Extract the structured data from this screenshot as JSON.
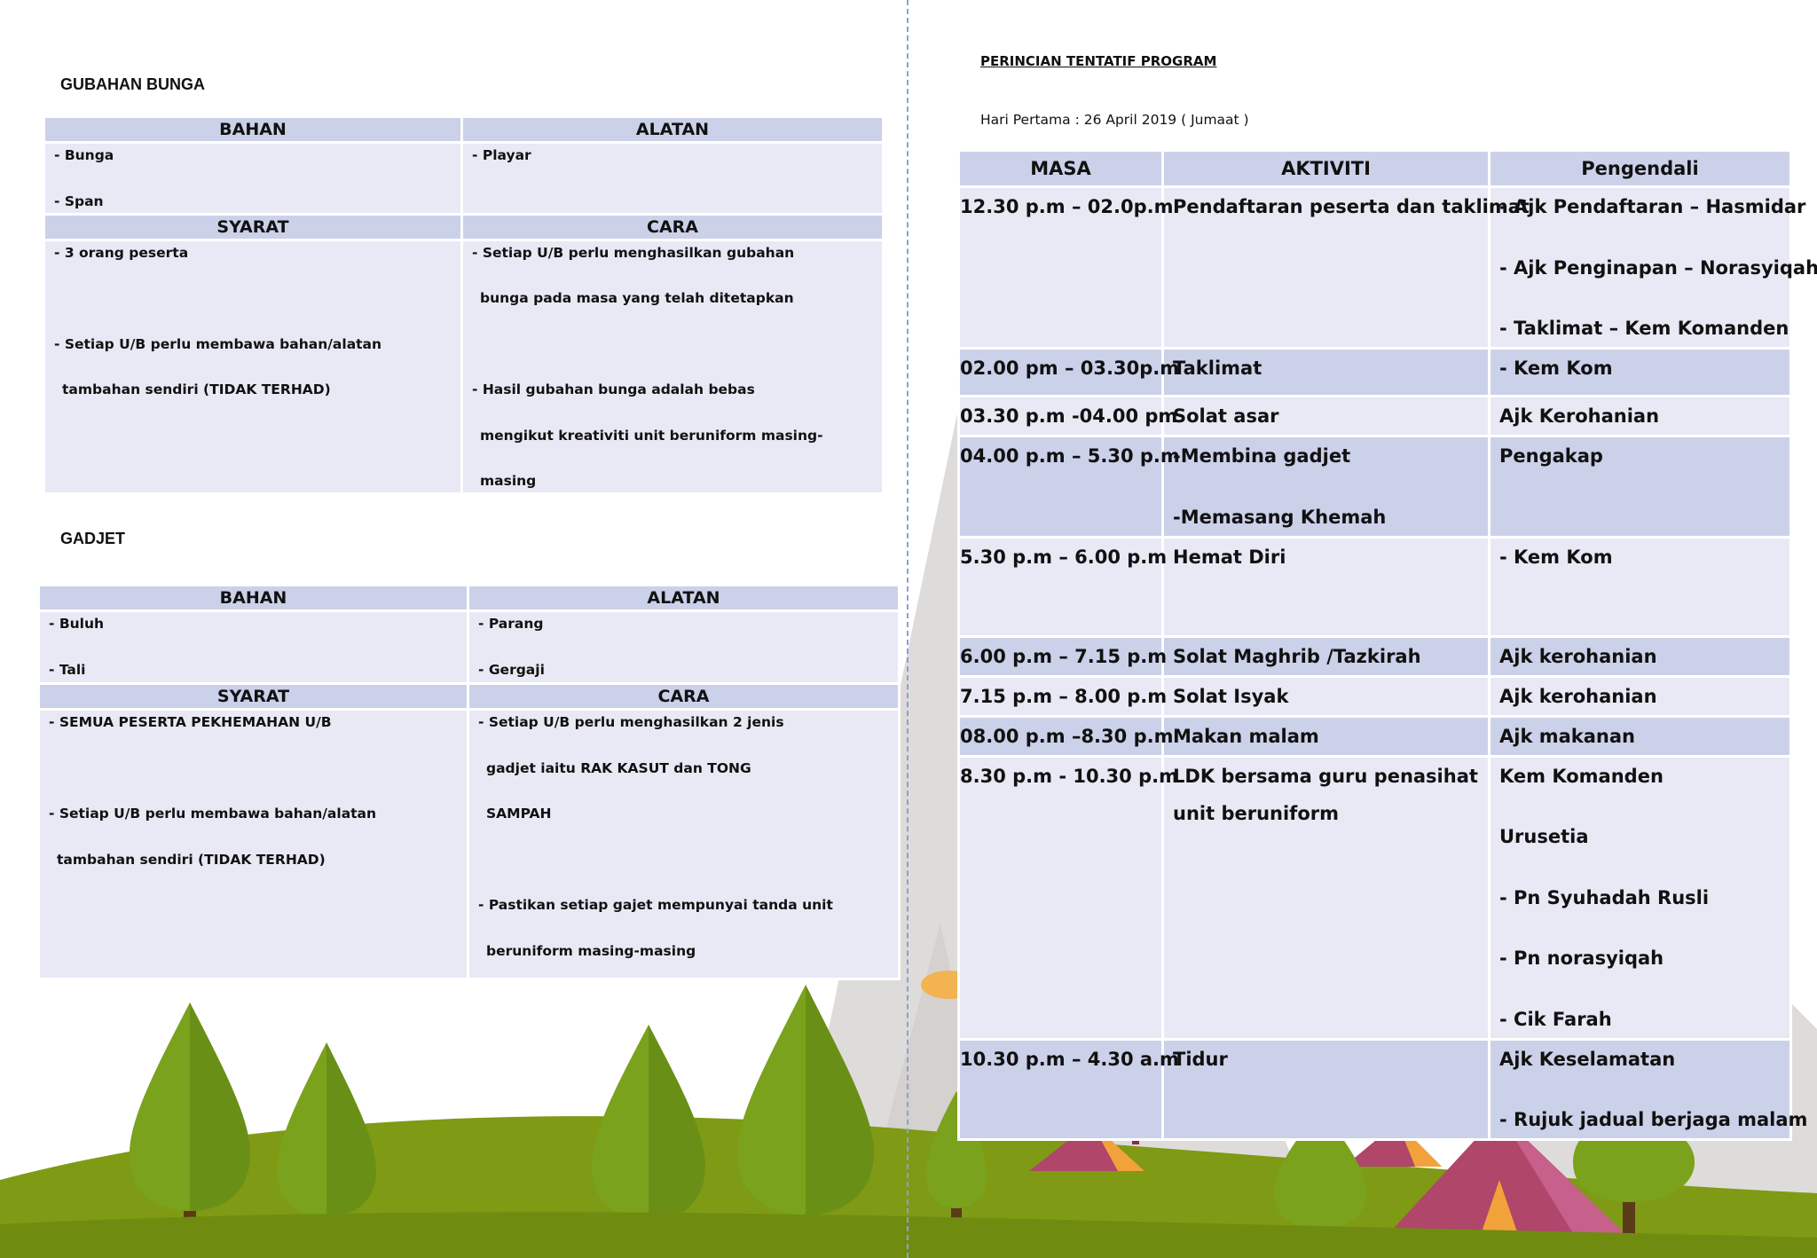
{
  "left": {
    "gubahan": {
      "heading": "GUBAHAN BUNGA",
      "bahan_header": "BAHAN",
      "alatan_header": "ALATAN",
      "bahan": [
        "- Bunga",
        "- Span"
      ],
      "alatan": [
        "- Playar"
      ],
      "syarat_header": "SYARAT",
      "cara_header": "CARA",
      "syarat": [
        "- 3 orang peserta",
        "",
        "- Setiap U/B perlu membawa bahan/alatan",
        "tambahan sendiri (TIDAK TERHAD)"
      ],
      "cara": [
        "- Setiap U/B perlu menghasilkan gubahan",
        "bunga pada masa yang telah ditetapkan",
        "",
        "- Hasil gubahan bunga adalah bebas",
        "mengikut kreativiti unit beruniform masing-",
        "masing"
      ]
    },
    "gadjet": {
      "heading": "GADJET",
      "bahan_header": "BAHAN",
      "alatan_header": "ALATAN",
      "bahan": [
        "- Buluh",
        "- Tali"
      ],
      "alatan": [
        "- Parang",
        "- Gergaji"
      ],
      "syarat_header": "SYARAT",
      "cara_header": "CARA",
      "syarat": [
        "- SEMUA PESERTA PEKHEMAHAN U/B",
        "",
        "- Setiap U/B perlu membawa bahan/alatan",
        "tambahan sendiri (TIDAK TERHAD)"
      ],
      "cara": [
        "- Setiap U/B perlu menghasilkan 2 jenis",
        "gadjet iaitu RAK KASUT dan TONG",
        "SAMPAH",
        "",
        "- Pastikan setiap gajet mempunyai tanda unit",
        "beruniform masing-masing"
      ]
    }
  },
  "right": {
    "title": "PERINCIAN TENTATIF PROGRAM",
    "day": "Hari Pertama : 26 April 2019 ( Jumaat )",
    "headers": {
      "masa": "MASA",
      "aktiviti": "AKTIVITI",
      "pengendali": "Pengendali"
    },
    "rows": [
      {
        "masa": "12.30 p.m – 02.0p.m",
        "aktiviti": [
          "Pendaftaran peserta dan taklimat"
        ],
        "pengendali": [
          "- Ajk Pendaftaran – Hasmidar",
          "- Ajk Penginapan – Norasyiqah",
          "- Taklimat – Kem Komanden"
        ]
      },
      {
        "masa": "02.00 pm – 03.30p.m",
        "aktiviti": [
          "Taklimat"
        ],
        "pengendali": [
          "- Kem Kom"
        ]
      },
      {
        "masa": "03.30 p.m -04.00 pm",
        "aktiviti": [
          "Solat asar"
        ],
        "pengendali": [
          "Ajk Kerohanian"
        ]
      },
      {
        "masa": "04.00 p.m – 5.30 p.m",
        "aktiviti": [
          "-Membina gadjet",
          "-Memasang Khemah"
        ],
        "pengendali": [
          "Pengakap"
        ]
      },
      {
        "masa": "5.30 p.m – 6.00 p.m",
        "aktiviti": [
          "Hemat Diri"
        ],
        "pengendali": [
          "- Kem Kom"
        ]
      },
      {
        "masa": "6.00 p.m – 7.15 p.m",
        "aktiviti": [
          "Solat Maghrib  /Tazkirah"
        ],
        "pengendali": [
          "Ajk kerohanian"
        ]
      },
      {
        "masa": "7.15 p.m – 8.00 p.m",
        "aktiviti": [
          "Solat Isyak"
        ],
        "pengendali": [
          "Ajk kerohanian"
        ]
      },
      {
        "masa": "08.00 p.m –8.30 p.m",
        "aktiviti": [
          "Makan malam"
        ],
        "pengendali": [
          "Ajk makanan"
        ]
      },
      {
        "masa": "8.30 p.m - 10.30 p.m",
        "aktiviti": [
          "LDK bersama guru penasihat unit beruniform"
        ],
        "pengendali": [
          "Kem Komanden",
          "Urusetia",
          "- Pn Syuhadah Rusli",
          "- Pn norasyiqah",
          "- Cik Farah"
        ]
      },
      {
        "masa": "10.30 p.m – 4.30 a.m",
        "aktiviti": [
          "Tidur"
        ],
        "pengendali": [
          "Ajk Keselamatan",
          "- Rujuk jadual berjaga malam"
        ]
      }
    ]
  },
  "colors": {
    "header_fill": "#ccd1ea",
    "cell_fill": "#e8e9f5",
    "grass": "#7a9a1a",
    "tree": "#7aa21c",
    "tent_red": "#b0466a",
    "tent_orange": "#f2a23a"
  }
}
